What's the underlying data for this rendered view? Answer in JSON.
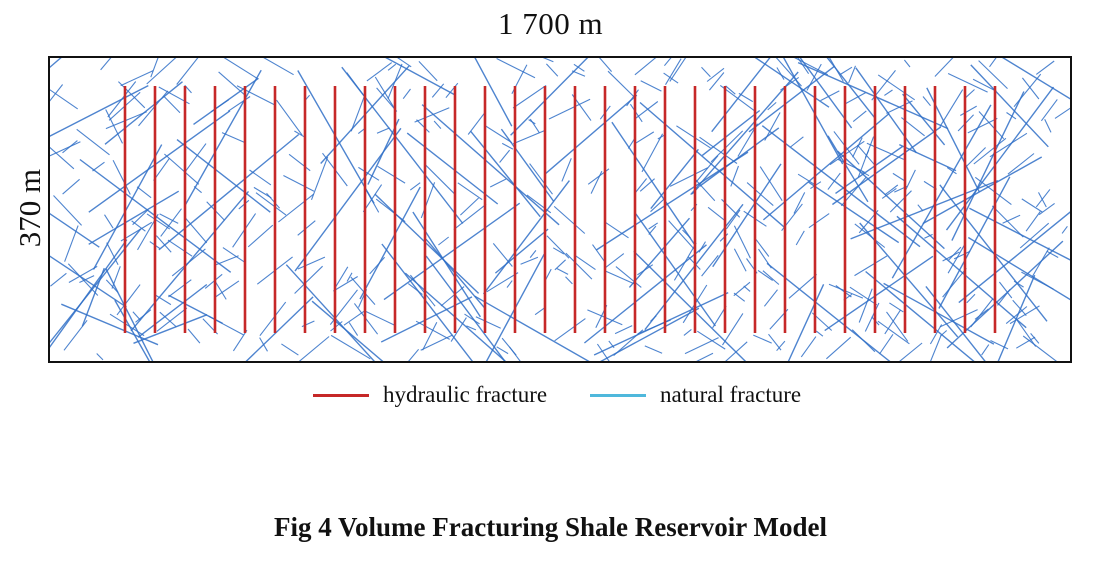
{
  "figure": {
    "width_label": "1 700 m",
    "height_label": "370 m",
    "caption": "Fig 4 Volume Fracturing Shale Reservoir Model"
  },
  "legend": {
    "items": [
      {
        "label": "hydraulic fracture",
        "color": "#c62828"
      },
      {
        "label": "natural fracture",
        "color": "#4fb8dc"
      }
    ]
  },
  "colors": {
    "hydraulic_fracture": "#c62828",
    "natural_fracture_line": "#2f6fc7",
    "border": "#111111"
  },
  "hydraulic_fractures": {
    "count": 30
  }
}
